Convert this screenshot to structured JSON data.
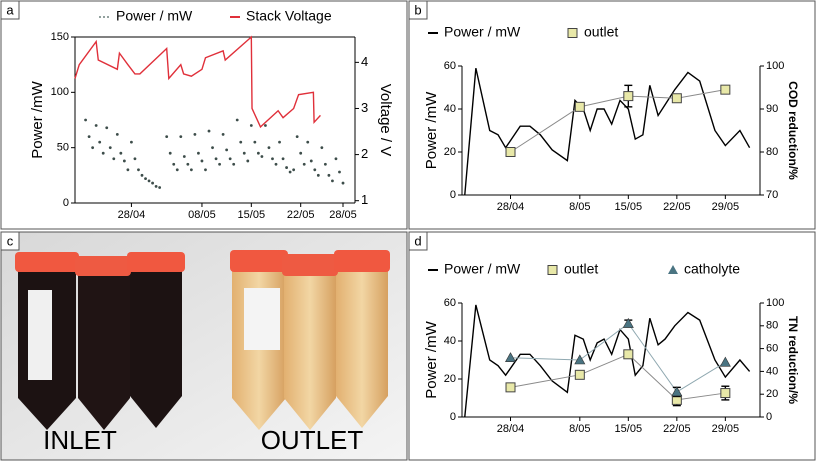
{
  "panels": [
    "a",
    "b",
    "c",
    "d"
  ],
  "photo": {
    "labels": [
      "INLET",
      "OUTLET"
    ]
  },
  "chart_data": [
    {
      "type": "line",
      "y_label": "Power /mW",
      "y2_label": "Voltage / V",
      "legend": "top",
      "legend_colored_text": true,
      "frame": true,
      "xlim": [
        20,
        59.7
      ],
      "xticks": [
        {
          "value": 28,
          "label": "28/04"
        },
        {
          "value": 38,
          "label": "08/05"
        },
        {
          "value": 45,
          "label": "15/05"
        },
        {
          "value": 52,
          "label": "22/05"
        },
        {
          "value": 58,
          "label": "28/05"
        }
      ],
      "ylim": [
        0,
        150
      ],
      "yticks": [
        0,
        50,
        100,
        150
      ],
      "y2lim": [
        0.95,
        4.55
      ],
      "y2ticks": [
        1,
        2,
        3,
        4
      ],
      "series": [
        {
          "name": "Power / mW",
          "color": "#3d4d4a",
          "style": "dots",
          "legend_color": "#6f8480",
          "x": [
            21.5,
            22,
            22.5,
            23,
            23.5,
            24,
            24.5,
            25,
            25.5,
            26,
            26.5,
            27,
            27.5,
            28,
            28.5,
            29,
            29.5,
            30,
            30.5,
            31,
            31.5,
            32,
            33,
            33.5,
            34,
            34.5,
            35,
            35.5,
            36,
            36.5,
            37,
            37.5,
            38,
            38.5,
            39,
            39.5,
            40,
            40.5,
            41,
            41.5,
            42,
            42.5,
            43,
            43.5,
            44,
            44.5,
            45,
            45.5,
            46,
            46.5,
            47,
            47.5,
            48,
            48.5,
            49,
            49.5,
            50,
            50.5,
            51,
            51.5,
            52,
            52.5,
            53,
            53.5,
            54,
            54.5,
            55,
            55.5,
            56,
            56.5,
            57,
            57.5,
            58
          ],
          "values": [
            75,
            60,
            50,
            70,
            55,
            45,
            68,
            50,
            40,
            62,
            45,
            38,
            30,
            55,
            40,
            30,
            25,
            22,
            20,
            18,
            15,
            14,
            60,
            45,
            35,
            30,
            60,
            42,
            35,
            30,
            62,
            45,
            38,
            30,
            65,
            50,
            40,
            35,
            62,
            48,
            40,
            35,
            75,
            55,
            45,
            38,
            70,
            55,
            45,
            42,
            70,
            50,
            40,
            35,
            55,
            40,
            32,
            28,
            30,
            60,
            45,
            35,
            55,
            38,
            30,
            25,
            50,
            35,
            25,
            20,
            40,
            28,
            18
          ]
        },
        {
          "name": "Stack Voltage",
          "color": "#e0303a",
          "style": "line",
          "axis": "y2",
          "x": [
            20,
            20.6,
            23,
            23.3,
            26,
            26.3,
            27.5,
            28.5,
            29.2,
            33,
            33.3,
            35,
            35.4,
            36.5,
            38,
            38.5,
            41,
            41.3,
            45,
            45.1,
            46.3,
            48.8,
            49.5,
            51,
            51.7,
            53.8,
            53.9,
            54.8
          ],
          "values": [
            3.65,
            3.95,
            4.45,
            4.05,
            3.85,
            4.2,
            3.95,
            3.75,
            3.75,
            4.3,
            3.65,
            3.95,
            3.75,
            3.7,
            3.85,
            4.1,
            4.25,
            4.05,
            4.55,
            3.0,
            2.6,
            2.95,
            2.8,
            3.0,
            3.3,
            3.35,
            2.7,
            2.85
          ]
        }
      ]
    },
    {
      "type": "line",
      "y_label": "Power /mW",
      "y2_label": "COD reduction/%",
      "legend": "top",
      "xlim": [
        21,
        64
      ],
      "xticks": [
        {
          "value": 28,
          "label": "28/04"
        },
        {
          "value": 38,
          "label": "8/05"
        },
        {
          "value": 45,
          "label": "15/05"
        },
        {
          "value": 52,
          "label": "22/05"
        },
        {
          "value": 59,
          "label": "29/05"
        }
      ],
      "ylim": [
        0,
        60
      ],
      "yticks": [
        0,
        20,
        40,
        60
      ],
      "y2lim": [
        70,
        100
      ],
      "y2ticks": [
        70,
        80,
        90,
        100
      ],
      "series": [
        {
          "name": "Power / mW",
          "color": "#000000",
          "style": "line",
          "x": [
            21.4,
            23,
            25,
            26.2,
            27.3,
            29.4,
            30.8,
            32.3,
            34,
            36.2,
            37.3,
            38.5,
            39.5,
            40.5,
            41.5,
            42.6,
            43.8,
            45,
            46,
            47.1,
            48.1,
            49.3,
            50.3,
            51.7,
            53.6,
            55.3,
            57.5,
            59,
            61.1,
            62.5
          ],
          "values": [
            0,
            59,
            30,
            28,
            22,
            32,
            32,
            28,
            21,
            16,
            44,
            40,
            30,
            40,
            40,
            33,
            44,
            40,
            26,
            28,
            51,
            37,
            42,
            49,
            57,
            53,
            30,
            23,
            30,
            22
          ]
        },
        {
          "name": "outlet",
          "color": "#e8e8a8",
          "style": "markers",
          "marker": "square",
          "line_color": "#8a8a8a",
          "axis": "y2",
          "x": [
            28,
            38,
            45,
            52,
            59
          ],
          "values": [
            80,
            90.5,
            93,
            92.5,
            94.5
          ],
          "errors": [
            null,
            null,
            2.5,
            0.8,
            null
          ]
        }
      ]
    },
    {
      "type": "line",
      "y_label": "Power /mW",
      "y2_label": "TN reduction/%",
      "legend": "top",
      "xlim": [
        21,
        64
      ],
      "xticks": [
        {
          "value": 28,
          "label": "28/04"
        },
        {
          "value": 38,
          "label": "8/05"
        },
        {
          "value": 45,
          "label": "15/05"
        },
        {
          "value": 52,
          "label": "22/05"
        },
        {
          "value": 59,
          "label": "29/05"
        }
      ],
      "ylim": [
        0,
        60
      ],
      "yticks": [
        0,
        20,
        40,
        60
      ],
      "y2lim": [
        0,
        100
      ],
      "y2ticks": [
        0,
        20,
        40,
        60,
        80,
        100
      ],
      "series": [
        {
          "name": "Power / mW",
          "color": "#000000",
          "style": "line",
          "x": [
            21.4,
            23,
            25,
            26.2,
            27.3,
            29.4,
            30.8,
            32.3,
            34,
            36.2,
            37.3,
            38.5,
            39.5,
            40.5,
            41.5,
            42.6,
            43.8,
            45,
            46,
            47.1,
            48.1,
            49.3,
            50.3,
            51.7,
            53.6,
            55.3,
            57.5,
            59,
            61.1,
            62.5
          ],
          "values": [
            0,
            59,
            30,
            27,
            22,
            33,
            33,
            27,
            19,
            13,
            43,
            41,
            30,
            39,
            41,
            33,
            46,
            41,
            22,
            27,
            52,
            38,
            41,
            48,
            55,
            51,
            30,
            21,
            30,
            24
          ]
        },
        {
          "name": "outlet",
          "color": "#e8e8a8",
          "style": "markers",
          "marker": "square",
          "line_color": "#8a8a8a",
          "axis": "y2",
          "x": [
            28,
            38,
            45,
            52,
            59
          ],
          "values": [
            26,
            37,
            55,
            15,
            21
          ],
          "errors": [
            null,
            null,
            null,
            5,
            6
          ]
        },
        {
          "name": "catholyte",
          "color": "#4a7482",
          "style": "markers",
          "marker": "triangle",
          "line_color": "#8fa8b0",
          "axis": "y2",
          "x": [
            28,
            38,
            45,
            52,
            59
          ],
          "values": [
            52,
            50,
            82,
            22,
            48
          ],
          "errors": [
            null,
            null,
            3,
            4,
            null
          ]
        }
      ]
    }
  ]
}
